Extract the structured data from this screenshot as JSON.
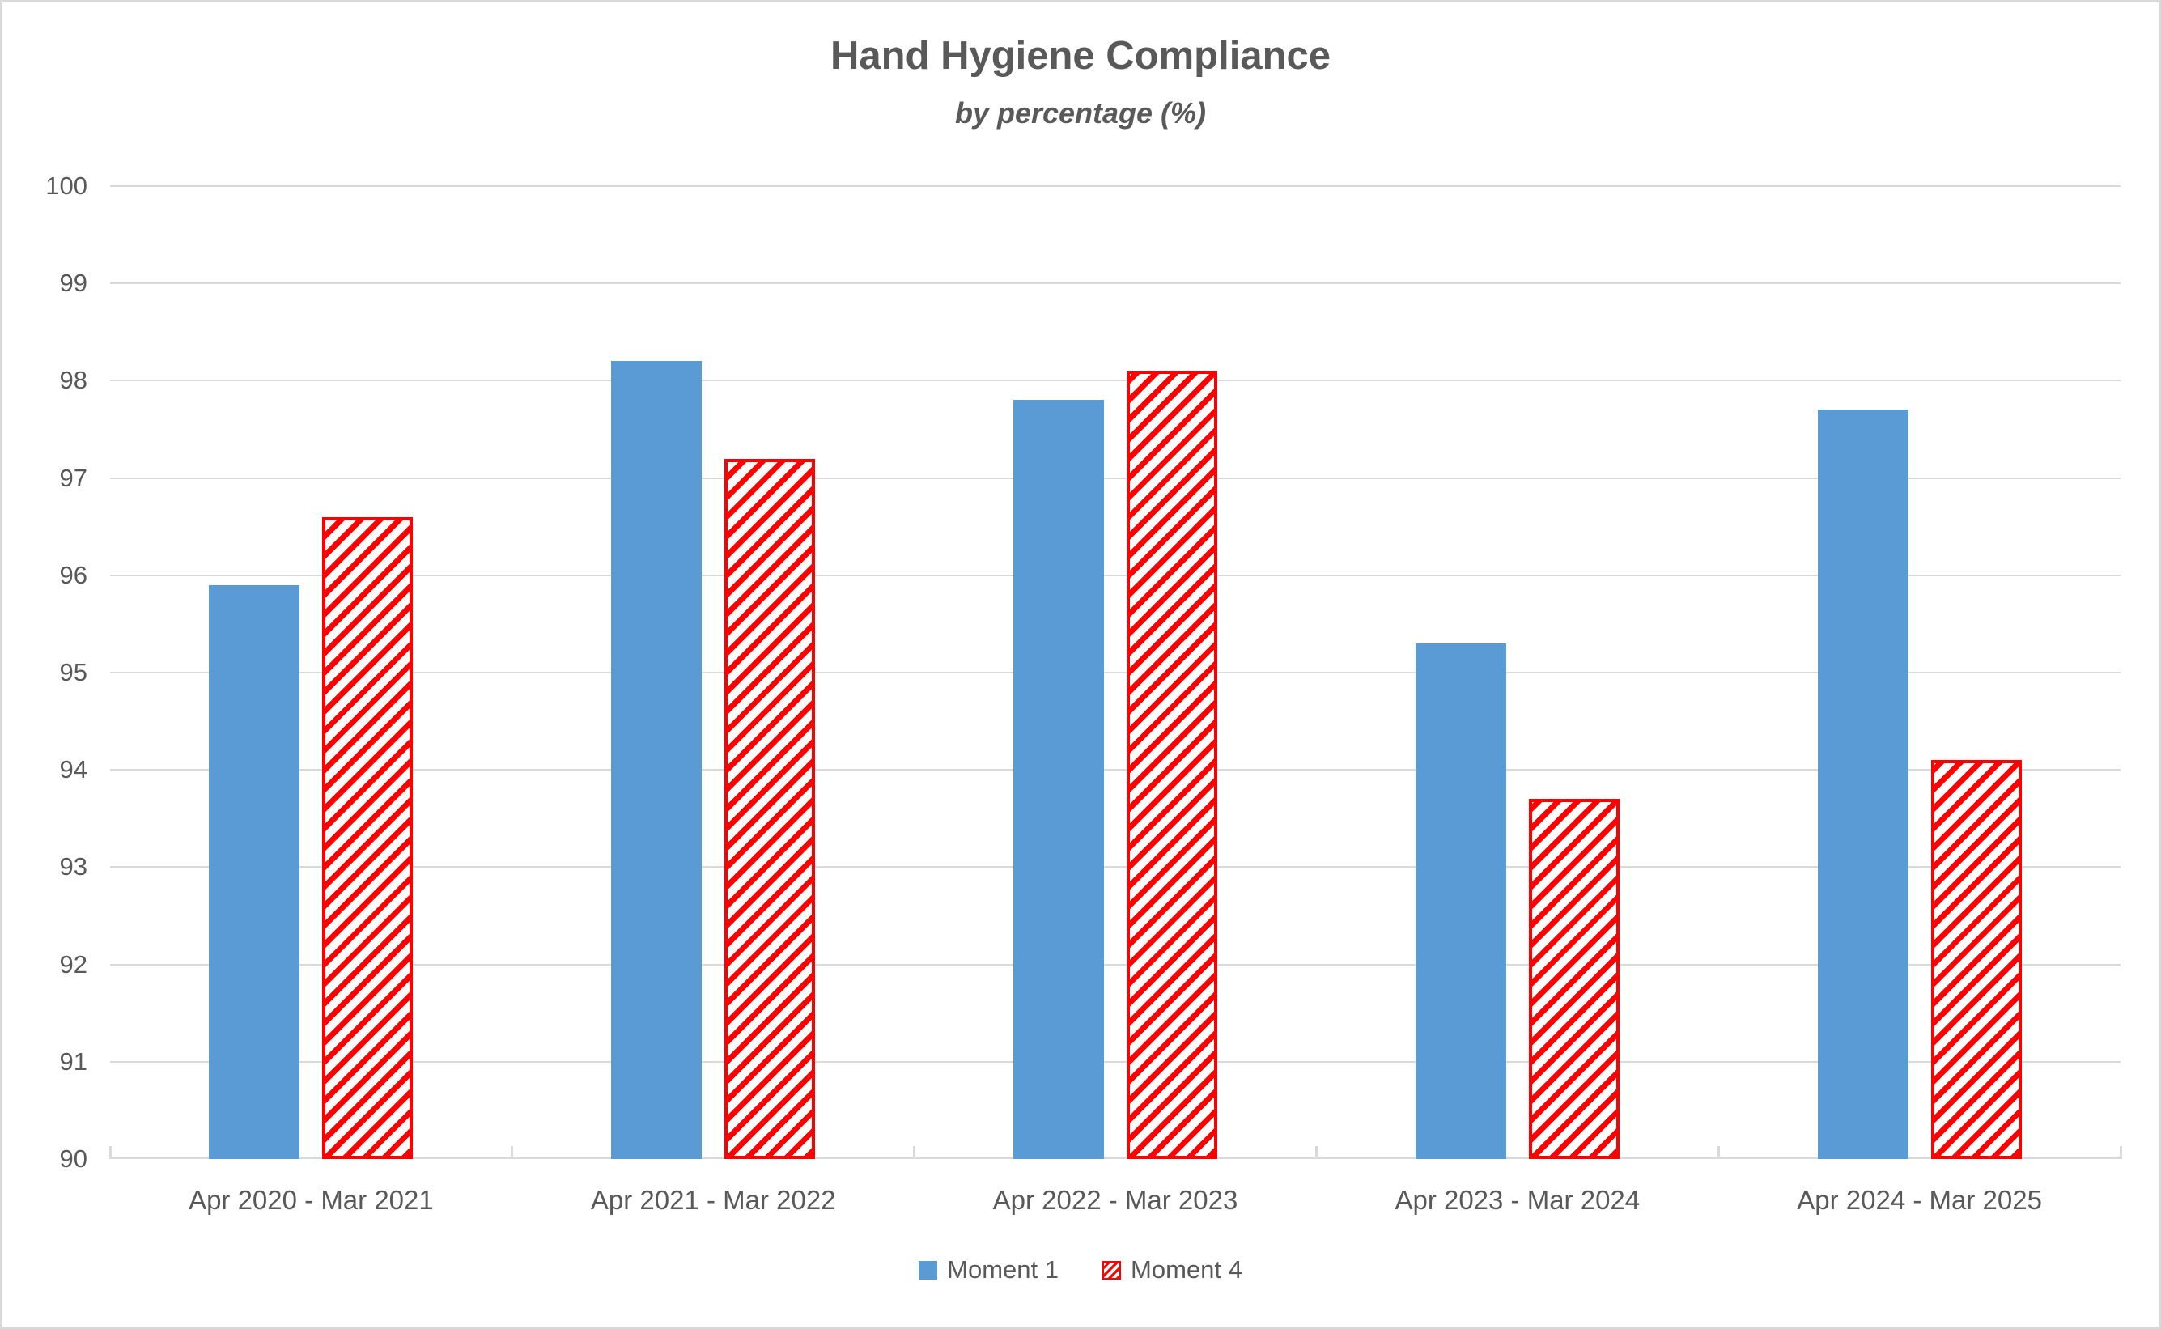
{
  "chart_data": {
    "type": "bar",
    "title": "Hand Hygiene Compliance",
    "subtitle": "by percentage (%)",
    "categories": [
      "Apr 2020 - Mar 2021",
      "Apr 2021 - Mar 2022",
      "Apr 2022 - Mar 2023",
      "Apr 2023 - Mar 2024",
      "Apr 2024 - Mar 2025"
    ],
    "series": [
      {
        "name": "Moment 1",
        "values": [
          95.9,
          98.2,
          97.8,
          95.3,
          97.7
        ],
        "color": "#5B9BD5",
        "pattern": "solid"
      },
      {
        "name": "Moment 4",
        "values": [
          96.6,
          97.2,
          98.1,
          93.7,
          94.1
        ],
        "color": "#FF0000",
        "pattern": "diagonal-hatch"
      }
    ],
    "ylim": [
      90,
      100
    ],
    "ytick_step": 1,
    "ytick_labels": [
      "90",
      "91",
      "92",
      "93",
      "94",
      "95",
      "96",
      "97",
      "98",
      "99",
      "100"
    ],
    "grid": true,
    "legend_position": "bottom",
    "colors": {
      "text": "#595959",
      "gridline": "#D9D9D9",
      "axis": "#D9D9D9",
      "hatch_background": "#FFFFFF"
    }
  }
}
